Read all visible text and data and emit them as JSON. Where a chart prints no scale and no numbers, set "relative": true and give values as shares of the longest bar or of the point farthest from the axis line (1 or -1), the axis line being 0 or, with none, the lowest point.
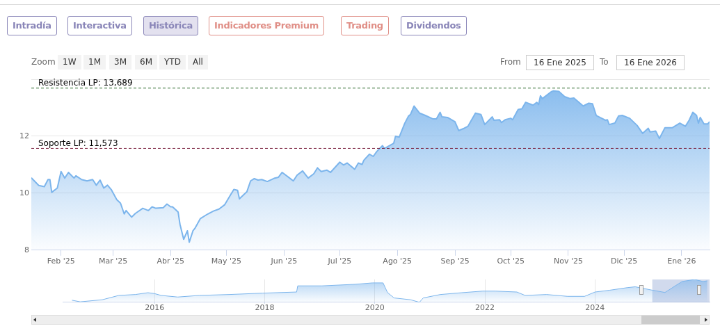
{
  "chart_data": [
    {
      "type": "area",
      "color": "#7cb5ec",
      "grid": "y",
      "legend": false,
      "marker": "none",
      "annotations": [
        "Intradía",
        "Interactiva",
        "Histórica",
        "Indicadores Premium",
        "Trading",
        "Dividendos",
        "Zoom",
        "1W",
        "1M",
        "3M",
        "6M",
        "YTD",
        "All",
        "From",
        "16 Ene 2025",
        "To",
        "16 Ene 2026"
      ],
      "x": [
        "2025-01-16",
        "2025-01-20",
        "2025-01-23",
        "2025-01-25",
        "2025-01-26",
        "2025-01-27",
        "2025-01-30",
        "2025-02-01",
        "2025-02-03",
        "2025-02-05",
        "2025-02-08",
        "2025-02-09",
        "2025-02-12",
        "2025-02-15",
        "2025-02-18",
        "2025-02-20",
        "2025-02-22",
        "2025-02-24",
        "2025-02-26",
        "2025-02-28",
        "2025-03-03",
        "2025-03-05",
        "2025-03-07",
        "2025-03-08",
        "2025-03-11",
        "2025-03-13",
        "2025-03-17",
        "2025-03-20",
        "2025-03-22",
        "2025-03-24",
        "2025-03-28",
        "2025-03-30",
        "2025-04-01",
        "2025-04-02",
        "2025-04-05",
        "2025-04-06",
        "2025-04-08",
        "2025-04-10",
        "2025-04-11",
        "2025-04-13",
        "2025-04-14",
        "2025-04-17",
        "2025-04-21",
        "2025-04-24",
        "2025-04-27",
        "2025-04-30",
        "2025-05-03",
        "2025-05-05",
        "2025-05-07",
        "2025-05-08",
        "2025-05-12",
        "2025-05-14",
        "2025-05-16",
        "2025-05-18",
        "2025-05-20",
        "2025-05-23",
        "2025-05-27",
        "2025-05-29",
        "2025-05-31",
        "2025-06-04",
        "2025-06-06",
        "2025-06-08",
        "2025-06-11",
        "2025-06-14",
        "2025-06-17",
        "2025-06-19",
        "2025-06-21",
        "2025-06-24",
        "2025-06-26",
        "2025-07-01",
        "2025-07-03",
        "2025-07-05",
        "2025-07-09",
        "2025-07-11",
        "2025-07-13",
        "2025-07-14",
        "2025-07-17",
        "2025-07-19",
        "2025-07-21",
        "2025-07-24",
        "2025-07-25",
        "2025-07-30",
        "2025-07-31",
        "2025-08-02",
        "2025-08-05",
        "2025-08-07",
        "2025-08-08",
        "2025-08-10",
        "2025-08-13",
        "2025-08-16",
        "2025-08-20",
        "2025-08-22",
        "2025-08-24",
        "2025-08-25",
        "2025-08-28",
        "2025-09-01",
        "2025-09-03",
        "2025-09-06",
        "2025-09-08",
        "2025-09-12",
        "2025-09-15",
        "2025-09-17",
        "2025-09-21",
        "2025-09-22",
        "2025-09-25",
        "2025-09-26",
        "2025-09-28",
        "2025-10-01",
        "2025-10-02",
        "2025-10-05",
        "2025-10-07",
        "2025-10-09",
        "2025-10-13",
        "2025-10-15",
        "2025-10-16",
        "2025-10-17",
        "2025-10-18",
        "2025-10-23",
        "2025-10-24",
        "2025-10-27",
        "2025-10-30",
        "2025-11-02",
        "2025-11-04",
        "2025-11-09",
        "2025-11-12",
        "2025-11-14",
        "2025-11-16",
        "2025-11-18",
        "2025-11-21",
        "2025-11-22",
        "2025-11-23",
        "2025-11-26",
        "2025-11-28",
        "2025-11-30",
        "2025-12-04",
        "2025-12-08",
        "2025-12-11",
        "2025-12-14",
        "2025-12-15",
        "2025-12-18",
        "2025-12-20",
        "2025-12-23",
        "2025-12-27",
        "2025-12-31",
        "2026-01-03",
        "2026-01-05",
        "2026-01-07",
        "2026-01-09",
        "2026-01-10",
        "2026-01-11",
        "2026-01-13",
        "2026-01-15",
        "2026-01-16"
      ],
      "values": [
        10.54,
        10.27,
        10.23,
        10.48,
        10.48,
        10.03,
        10.18,
        10.76,
        10.53,
        10.73,
        10.53,
        10.61,
        10.48,
        10.43,
        10.48,
        10.28,
        10.46,
        10.18,
        10.28,
        10.13,
        9.77,
        9.65,
        9.27,
        9.39,
        9.16,
        9.29,
        9.47,
        9.39,
        9.52,
        9.47,
        9.49,
        9.62,
        9.52,
        9.52,
        9.34,
        8.91,
        8.38,
        8.68,
        8.28,
        8.68,
        8.76,
        9.11,
        9.27,
        9.37,
        9.44,
        9.59,
        9.92,
        10.13,
        10.1,
        9.8,
        10.05,
        10.43,
        10.51,
        10.46,
        10.48,
        10.41,
        10.53,
        10.56,
        10.73,
        10.53,
        10.43,
        10.63,
        10.78,
        10.53,
        10.68,
        10.89,
        10.76,
        10.81,
        10.73,
        11.09,
        10.99,
        11.06,
        10.84,
        11.06,
        11.01,
        11.16,
        11.37,
        11.29,
        11.47,
        11.67,
        11.57,
        11.75,
        12.0,
        11.97,
        12.46,
        12.71,
        12.76,
        13.06,
        12.81,
        12.73,
        12.61,
        12.61,
        12.84,
        12.68,
        12.66,
        12.51,
        12.2,
        12.28,
        12.35,
        12.81,
        12.76,
        12.41,
        12.68,
        12.56,
        12.58,
        12.48,
        12.58,
        12.63,
        12.58,
        12.94,
        12.96,
        13.19,
        13.09,
        13.19,
        13.11,
        13.42,
        13.32,
        13.57,
        13.59,
        13.57,
        13.39,
        13.32,
        13.34,
        13.06,
        13.16,
        13.14,
        12.73,
        12.66,
        12.56,
        12.58,
        12.41,
        12.46,
        12.71,
        12.73,
        12.63,
        12.38,
        12.1,
        12.28,
        12.15,
        12.18,
        11.92,
        12.3,
        12.3,
        12.46,
        12.35,
        12.56,
        12.84,
        12.73,
        12.46,
        12.66,
        12.43,
        12.43,
        12.51
      ],
      "xlim": [
        "2025-01-16",
        "2026-01-16"
      ],
      "xticks": [
        {
          "value": "2025-02-01",
          "label": "Feb '25"
        },
        {
          "value": "2025-03-01",
          "label": "Mar '25"
        },
        {
          "value": "2025-04-01",
          "label": "Abr '25"
        },
        {
          "value": "2025-05-01",
          "label": "May '25"
        },
        {
          "value": "2025-06-01",
          "label": "Jun '25"
        },
        {
          "value": "2025-07-01",
          "label": "Jul '25"
        },
        {
          "value": "2025-08-01",
          "label": "Ago '25"
        },
        {
          "value": "2025-09-01",
          "label": "Sep '25"
        },
        {
          "value": "2025-10-01",
          "label": "Oct '25"
        },
        {
          "value": "2025-11-01",
          "label": "Nov '25"
        },
        {
          "value": "2025-12-01",
          "label": "Dic '25"
        },
        {
          "value": "2026-01-01",
          "label": "Ene '26"
        }
      ],
      "ylim": [
        8,
        14
      ],
      "yticks": [
        8,
        10,
        12,
        {
          "value": 14,
          "label": null
        }
      ],
      "ref_lines": [
        {
          "axis": "y",
          "value": 13.689,
          "label": "Resistencia LP: 13,689",
          "color": "#2e6b2e",
          "line_style": "dashed"
        },
        {
          "axis": "y",
          "value": 11.573,
          "label": "Soporte LP: 11,573",
          "color": "#7a1f3d",
          "line_style": "dashed"
        }
      ]
    },
    {
      "type": "area",
      "color": "#7cb5ec",
      "grid": "x",
      "legend": false,
      "marker": "none",
      "relative": true,
      "tick_labels": "x",
      "x": [
        2014.5,
        2014.65,
        2015.05,
        2015.35,
        2015.65,
        2015.88,
        2016.0,
        2016.12,
        2016.42,
        2016.81,
        2017.35,
        2017.96,
        2018.58,
        2018.6,
        2019.04,
        2019.65,
        2019.96,
        2020.15,
        2020.23,
        2020.35,
        2020.65,
        2020.81,
        2020.88,
        2021.19,
        2021.58,
        2021.96,
        2022.19,
        2022.58,
        2022.73,
        2023.12,
        2023.5,
        2023.81,
        2024.0,
        2024.27,
        2024.58,
        2024.73,
        2025.04,
        2025.27,
        2025.58,
        2025.81,
        2025.96,
        2026.04
      ],
      "values": [
        0.09,
        0.02,
        0.11,
        0.3,
        0.34,
        0.42,
        0.38,
        0.3,
        0.23,
        0.3,
        0.34,
        0.4,
        0.45,
        0.72,
        0.72,
        0.79,
        0.85,
        0.85,
        0.43,
        0.19,
        0.11,
        0,
        0.19,
        0.34,
        0.42,
        0.49,
        0.49,
        0.45,
        0.3,
        0.34,
        0.26,
        0.26,
        0.45,
        0.53,
        0.64,
        0.68,
        0.53,
        0.43,
        0.91,
        1,
        0.91,
        0.94
      ],
      "xlim": [
        2014.33,
        2026.08
      ],
      "xticks": [
        2016,
        2018,
        2020,
        2022,
        2024
      ],
      "bands": [
        {
          "axis": "x",
          "from": 2025.04,
          "to": 2026.08,
          "color": "#6685c2"
        }
      ]
    }
  ]
}
